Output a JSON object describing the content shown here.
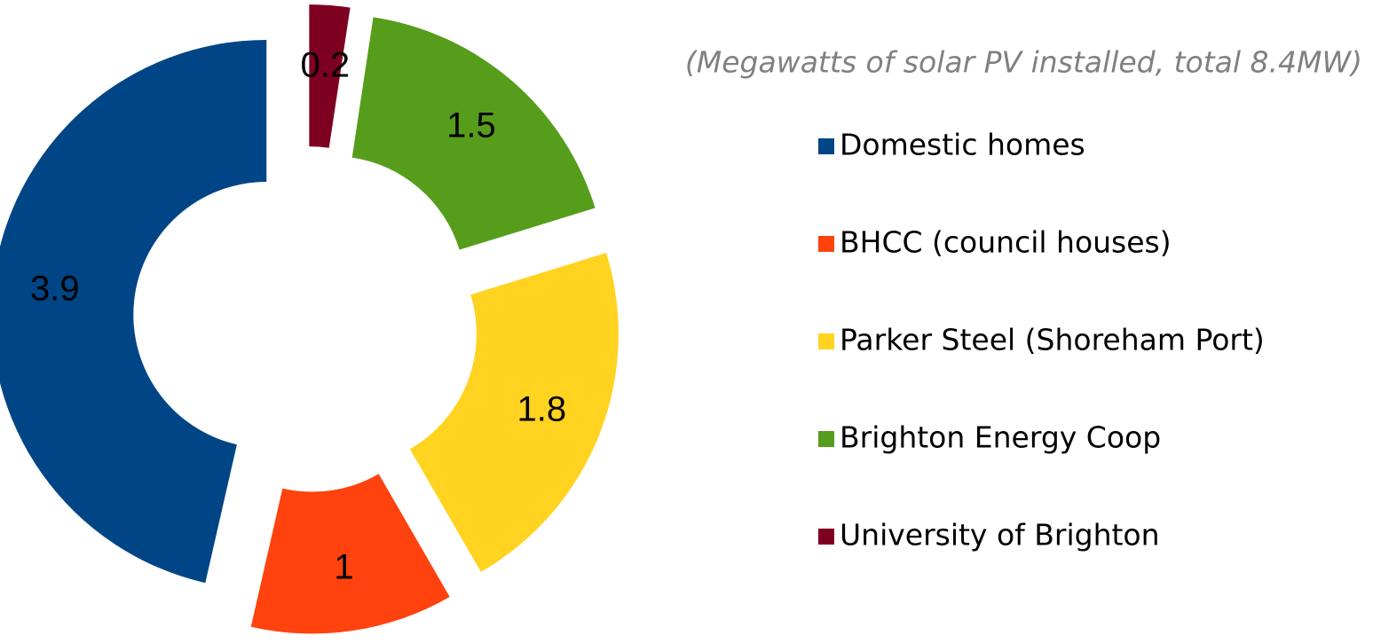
{
  "chart_data": {
    "type": "donut",
    "subtitle": "(Megawatts of solar PV installed, total  8.4MW)",
    "categories": [
      "Domestic homes",
      "BHCC (council houses)",
      "Parker Steel (Shoreham Port)",
      "Brighton Energy Coop",
      "University of Brighton"
    ],
    "values": [
      3.9,
      1,
      1.8,
      1.5,
      0.2
    ],
    "colors": [
      "#004586",
      "#ff420e",
      "#ffd320",
      "#579d1c",
      "#7e0021"
    ],
    "legend": "right"
  }
}
